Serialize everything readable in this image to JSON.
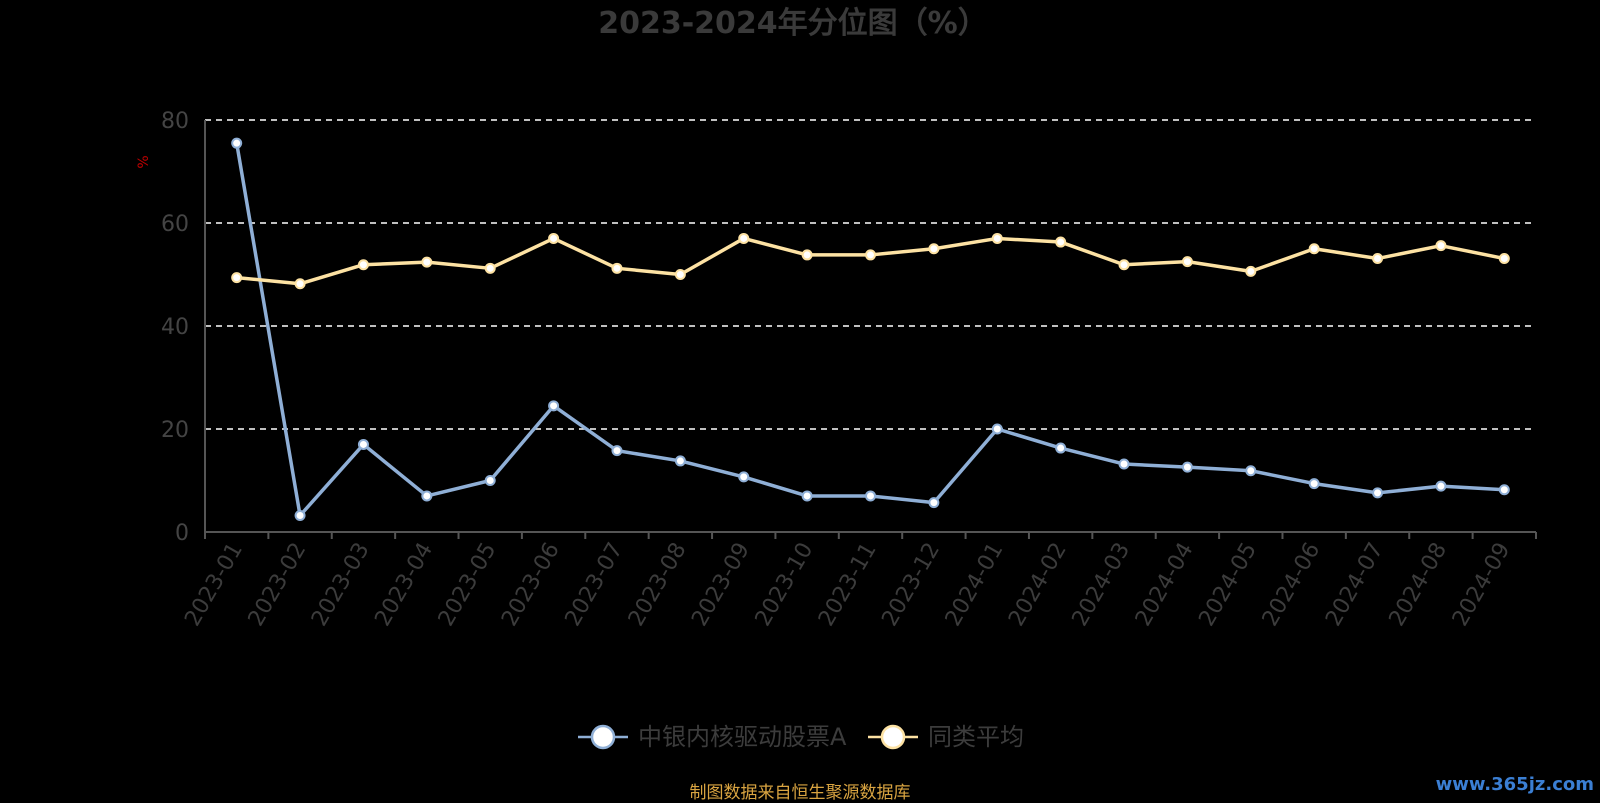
{
  "chart_data": {
    "type": "line",
    "title": "2023-2024年分位图（%）",
    "ylabel": "%",
    "ylim": [
      0,
      80
    ],
    "yticks": [
      0,
      20,
      40,
      60,
      80
    ],
    "grid": true,
    "legend_position": "bottom",
    "categories": [
      "2023-01",
      "2023-02",
      "2023-03",
      "2023-04",
      "2023-05",
      "2023-06",
      "2023-07",
      "2023-08",
      "2023-09",
      "2023-10",
      "2023-11",
      "2023-12",
      "2024-01",
      "2024-02",
      "2024-03",
      "2024-04",
      "2024-05",
      "2024-06",
      "2024-07",
      "2024-08",
      "2024-09"
    ],
    "series": [
      {
        "name": "中银内核驱动股票A",
        "color": "#8fafd6",
        "values": [
          75.5,
          3.2,
          17.0,
          7.0,
          10.0,
          24.5,
          15.8,
          13.8,
          10.7,
          7.0,
          7.0,
          5.7,
          20.0,
          16.3,
          13.2,
          12.6,
          11.9,
          9.4,
          7.6,
          8.9,
          8.2
        ]
      },
      {
        "name": "同类平均",
        "color": "#fde2a3",
        "values": [
          49.4,
          48.2,
          51.9,
          52.4,
          51.2,
          57.0,
          51.2,
          50.0,
          57.0,
          53.8,
          53.8,
          55.0,
          57.0,
          56.3,
          51.9,
          52.5,
          50.6,
          55.0,
          53.1,
          55.6,
          53.1
        ]
      }
    ]
  },
  "footer": {
    "source": "制图数据来自恒生聚源数据库",
    "watermark": "www.365jz.com"
  }
}
